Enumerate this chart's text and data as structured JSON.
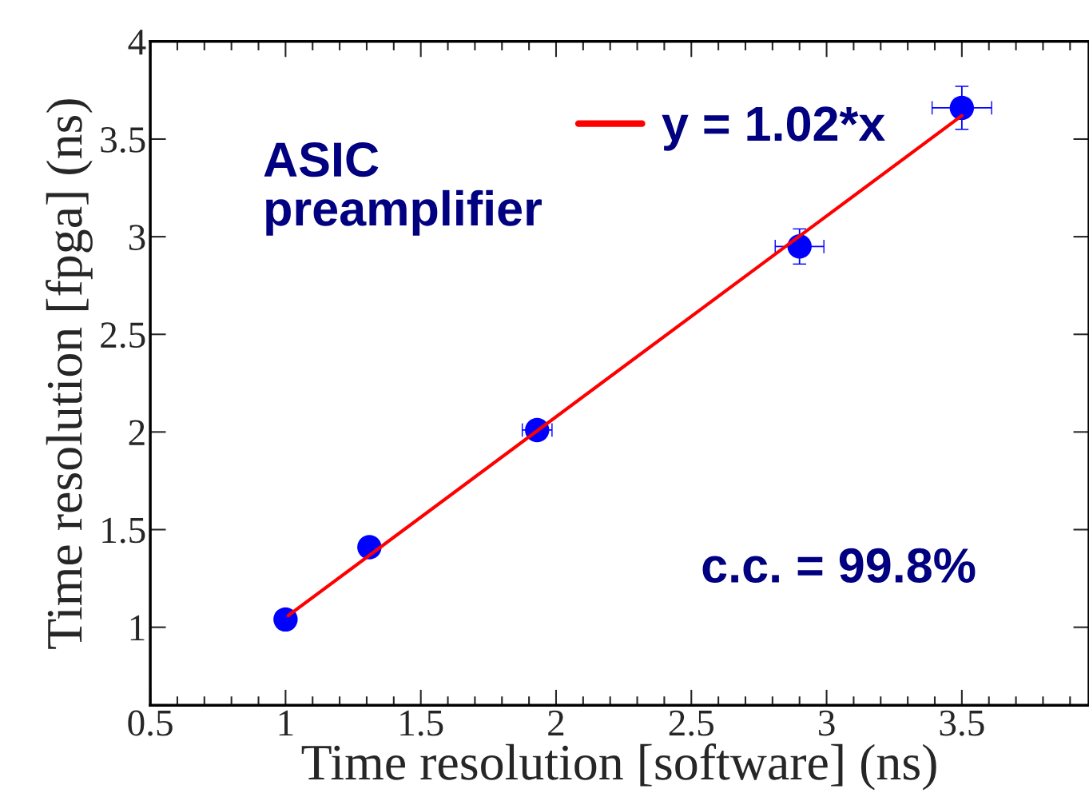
{
  "chart_data": {
    "type": "scatter",
    "xlabel": "Time resolution [software] (ns)",
    "ylabel": "Time resolution [fpga] (ns)",
    "xlim": [
      0.5,
      3.97
    ],
    "ylim": [
      0.6,
      4
    ],
    "xticks": [
      0.5,
      1,
      1.5,
      2,
      2.5,
      3,
      3.5
    ],
    "yticks": [
      1,
      1.5,
      2,
      2.5,
      3,
      3.5,
      4
    ],
    "grid": false,
    "legend": "top right",
    "series": [
      {
        "color": "#0000ff",
        "marker": "circle",
        "x": [
          1.0,
          1.31,
          1.93,
          2.9,
          3.5
        ],
        "values": [
          1.04,
          1.41,
          2.01,
          2.95,
          3.66
        ],
        "errors": [
          null,
          null,
          0.02,
          0.09,
          0.11
        ],
        "xerrors": [
          null,
          null,
          0.055,
          0.09,
          0.11
        ]
      },
      {
        "type": "line",
        "marker": "none",
        "name": "y = 1.02*x",
        "color": "#ff0000",
        "x": [
          1.01,
          3.5
        ],
        "values": [
          1.06,
          3.62
        ]
      }
    ],
    "annotations": [
      "ASIC\npreamplifier",
      "c.c. = 99.8%"
    ]
  }
}
